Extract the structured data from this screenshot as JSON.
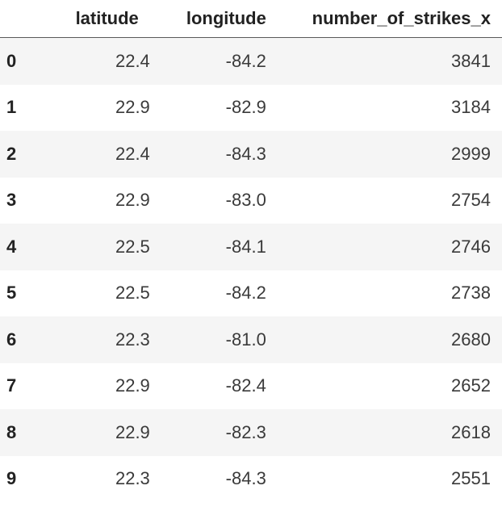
{
  "table": {
    "columns": {
      "index": "",
      "latitude": "latitude",
      "longitude": "longitude",
      "number_of_strikes_x": "number_of_strikes_x"
    },
    "rows": [
      {
        "index": "0",
        "latitude": "22.4",
        "longitude": "-84.2",
        "number_of_strikes_x": "3841"
      },
      {
        "index": "1",
        "latitude": "22.9",
        "longitude": "-82.9",
        "number_of_strikes_x": "3184"
      },
      {
        "index": "2",
        "latitude": "22.4",
        "longitude": "-84.3",
        "number_of_strikes_x": "2999"
      },
      {
        "index": "3",
        "latitude": "22.9",
        "longitude": "-83.0",
        "number_of_strikes_x": "2754"
      },
      {
        "index": "4",
        "latitude": "22.5",
        "longitude": "-84.1",
        "number_of_strikes_x": "2746"
      },
      {
        "index": "5",
        "latitude": "22.5",
        "longitude": "-84.2",
        "number_of_strikes_x": "2738"
      },
      {
        "index": "6",
        "latitude": "22.3",
        "longitude": "-81.0",
        "number_of_strikes_x": "2680"
      },
      {
        "index": "7",
        "latitude": "22.9",
        "longitude": "-82.4",
        "number_of_strikes_x": "2652"
      },
      {
        "index": "8",
        "latitude": "22.9",
        "longitude": "-82.3",
        "number_of_strikes_x": "2618"
      },
      {
        "index": "9",
        "latitude": "22.3",
        "longitude": "-84.3",
        "number_of_strikes_x": "2551"
      }
    ]
  },
  "colors": {
    "header_rule": "#5a5a5a",
    "striped_row": "#f5f5f5",
    "text": "#333333"
  }
}
